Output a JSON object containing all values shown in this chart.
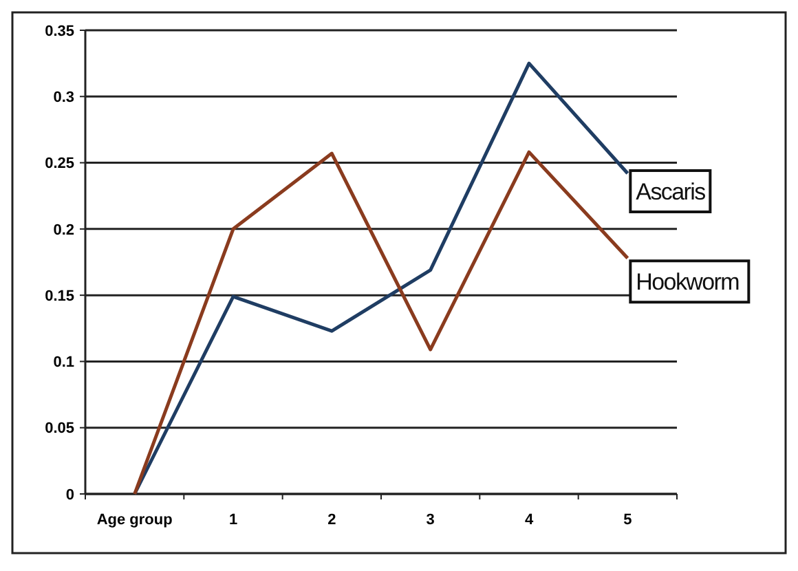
{
  "chart_data": {
    "type": "line",
    "categories": [
      "Age group",
      "1",
      "2",
      "3",
      "4",
      "5"
    ],
    "series": [
      {
        "name": "Ascaris",
        "color": "#1f3d63",
        "values": [
          0,
          0.149,
          0.123,
          0.169,
          0.325,
          0.242
        ]
      },
      {
        "name": "Hookworm",
        "color": "#8a3b1e",
        "values": [
          0,
          0.2,
          0.257,
          0.109,
          0.258,
          0.178
        ]
      }
    ],
    "ylim": [
      0,
      0.35
    ],
    "yticks": [
      0,
      0.05,
      0.1,
      0.15,
      0.2,
      0.25,
      0.3,
      0.35
    ],
    "grid": "y",
    "marker": "none",
    "line_style": "solid"
  }
}
